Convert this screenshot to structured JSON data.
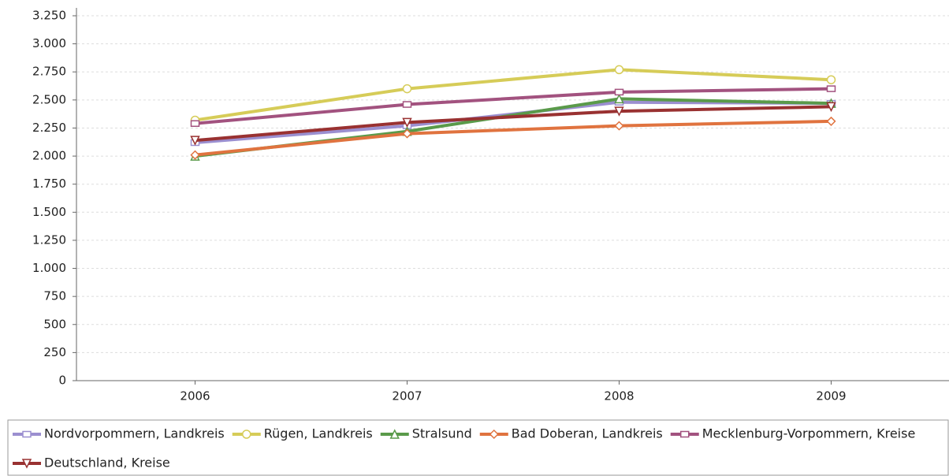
{
  "chart_data": {
    "type": "line",
    "categories": [
      "2006",
      "2007",
      "2008",
      "2009"
    ],
    "ylim": [
      0,
      3250
    ],
    "yticks": [
      0,
      250,
      500,
      750,
      {
        "value": 1000,
        "label": "1.000"
      },
      {
        "value": 1250,
        "label": "1.250"
      },
      {
        "value": 1500,
        "label": "1.500"
      },
      {
        "value": 1750,
        "label": "1.750"
      },
      {
        "value": 2000,
        "label": "2.000"
      },
      {
        "value": 2250,
        "label": "2.250"
      },
      {
        "value": 2500,
        "label": "2.500"
      },
      {
        "value": 2750,
        "label": "2.750"
      },
      {
        "value": 3000,
        "label": "3.000"
      },
      {
        "value": 3250,
        "label": "3.250"
      }
    ],
    "grid": true,
    "legend": "bottom",
    "series": [
      {
        "name": "Nordvorpommern, Landkreis",
        "color": "#9b8fd0",
        "marker": "square",
        "values": [
          2120,
          2270,
          2480,
          2470
        ]
      },
      {
        "name": "Rügen, Landkreis",
        "color": "#d6cc58",
        "marker": "circle",
        "values": [
          2320,
          2600,
          2770,
          2680
        ]
      },
      {
        "name": "Stralsund",
        "color": "#5a9a4a",
        "marker": "triangle-up",
        "values": [
          2000,
          2220,
          2510,
          2470
        ]
      },
      {
        "name": "Bad Doberan, Landkreis",
        "color": "#e0733f",
        "marker": "diamond",
        "values": [
          2010,
          2200,
          2270,
          2310
        ]
      },
      {
        "name": "Mecklenburg-Vorpommern, Kreise",
        "color": "#a2527f",
        "marker": "square",
        "values": [
          2290,
          2460,
          2570,
          2600
        ]
      },
      {
        "name": "Deutschland, Kreise",
        "color": "#993131",
        "marker": "triangle-down",
        "values": [
          2140,
          2300,
          2400,
          2440
        ]
      }
    ]
  }
}
